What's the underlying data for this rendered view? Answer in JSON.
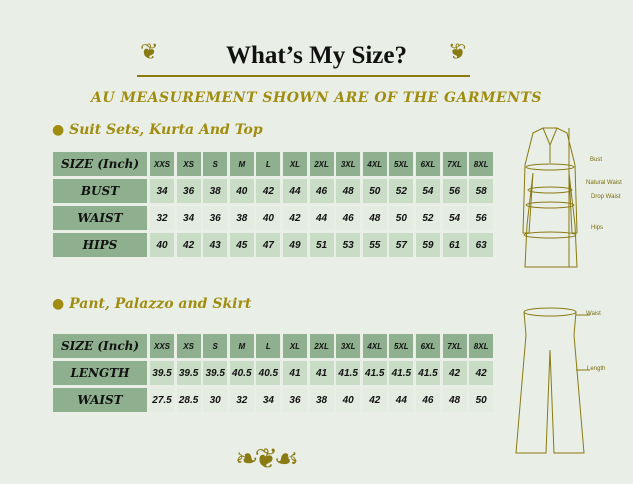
{
  "title": "What’s My Size?",
  "subtitle": "AU MEASUREMENT SHOWN ARE OF THE GARMENTS",
  "colors": {
    "accent": "#8a7a12",
    "header": "#8fb08f",
    "row": "#c9dcc6",
    "background": "#e9efe6"
  },
  "sizes": [
    "XXS",
    "XS",
    "S",
    "M",
    "L",
    "XL",
    "2XL",
    "3XL",
    "4XL",
    "5XL",
    "6XL",
    "7XL",
    "8XL"
  ],
  "suit": {
    "heading": "Suit Sets, Kurta And Top",
    "header_label": "SIZE (Inch)",
    "rows": [
      {
        "label": "BUST",
        "values": [
          "34",
          "36",
          "38",
          "40",
          "42",
          "44",
          "46",
          "48",
          "50",
          "52",
          "54",
          "56",
          "58"
        ]
      },
      {
        "label": "WAIST",
        "values": [
          "32",
          "34",
          "36",
          "38",
          "40",
          "42",
          "44",
          "46",
          "48",
          "50",
          "52",
          "54",
          "56"
        ]
      },
      {
        "label": "HIPS",
        "values": [
          "40",
          "42",
          "43",
          "45",
          "47",
          "49",
          "51",
          "53",
          "55",
          "57",
          "59",
          "61",
          "63"
        ]
      }
    ],
    "diagram_labels": [
      "Bust",
      "Natural Waist",
      "Drop Waist",
      "Hips"
    ]
  },
  "pant": {
    "heading": "Pant, Palazzo and Skirt",
    "header_label": "SIZE (Inch)",
    "rows": [
      {
        "label": "LENGTH",
        "values": [
          "39.5",
          "39.5",
          "39.5",
          "40.5",
          "40.5",
          "41",
          "41",
          "41.5",
          "41.5",
          "41.5",
          "41.5",
          "42",
          "42"
        ]
      },
      {
        "label": "WAIST",
        "values": [
          "27.5",
          "28.5",
          "30",
          "32",
          "34",
          "36",
          "38",
          "40",
          "42",
          "44",
          "46",
          "48",
          "50"
        ]
      }
    ],
    "diagram_labels": [
      "Waist",
      "Length"
    ]
  }
}
